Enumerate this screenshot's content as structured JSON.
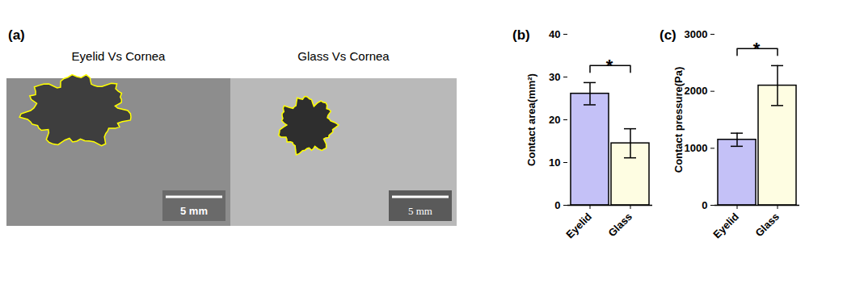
{
  "images": {
    "panel_label": "(a)",
    "panels": [
      {
        "title": "Eyelid Vs Cornea",
        "scale_bar": "5 mm"
      },
      {
        "title": "Glass Vs Cornea",
        "scale_bar": "5 mm"
      }
    ]
  },
  "chart_data": [
    {
      "type": "bar",
      "panel_label": "(b)",
      "y_label": "Contact area(mm²)",
      "categories": [
        "Eyelid",
        "Glass"
      ],
      "values": [
        26.1,
        14.5
      ],
      "errors": [
        2.6,
        3.4
      ],
      "colors": [
        "#c4c1f7",
        "#fefde2"
      ],
      "ylim": [
        0,
        40
      ],
      "yticks": [
        0,
        10,
        20,
        30,
        40
      ],
      "annotations": [
        {
          "text": "*",
          "from": "Eyelid",
          "to": "Glass"
        }
      ]
    },
    {
      "type": "bar",
      "panel_label": "(c)",
      "y_label": "Contact pressure(Pa)",
      "categories": [
        "Eyelid",
        "Glass"
      ],
      "values": [
        1150,
        2100
      ],
      "errors": [
        115,
        350
      ],
      "colors": [
        "#c4c1f7",
        "#fefde2"
      ],
      "ylim": [
        0,
        3000
      ],
      "yticks": [
        0,
        1000,
        2000,
        3000
      ],
      "annotations": [
        {
          "text": "*",
          "from": "Eyelid",
          "to": "Glass"
        }
      ]
    }
  ]
}
